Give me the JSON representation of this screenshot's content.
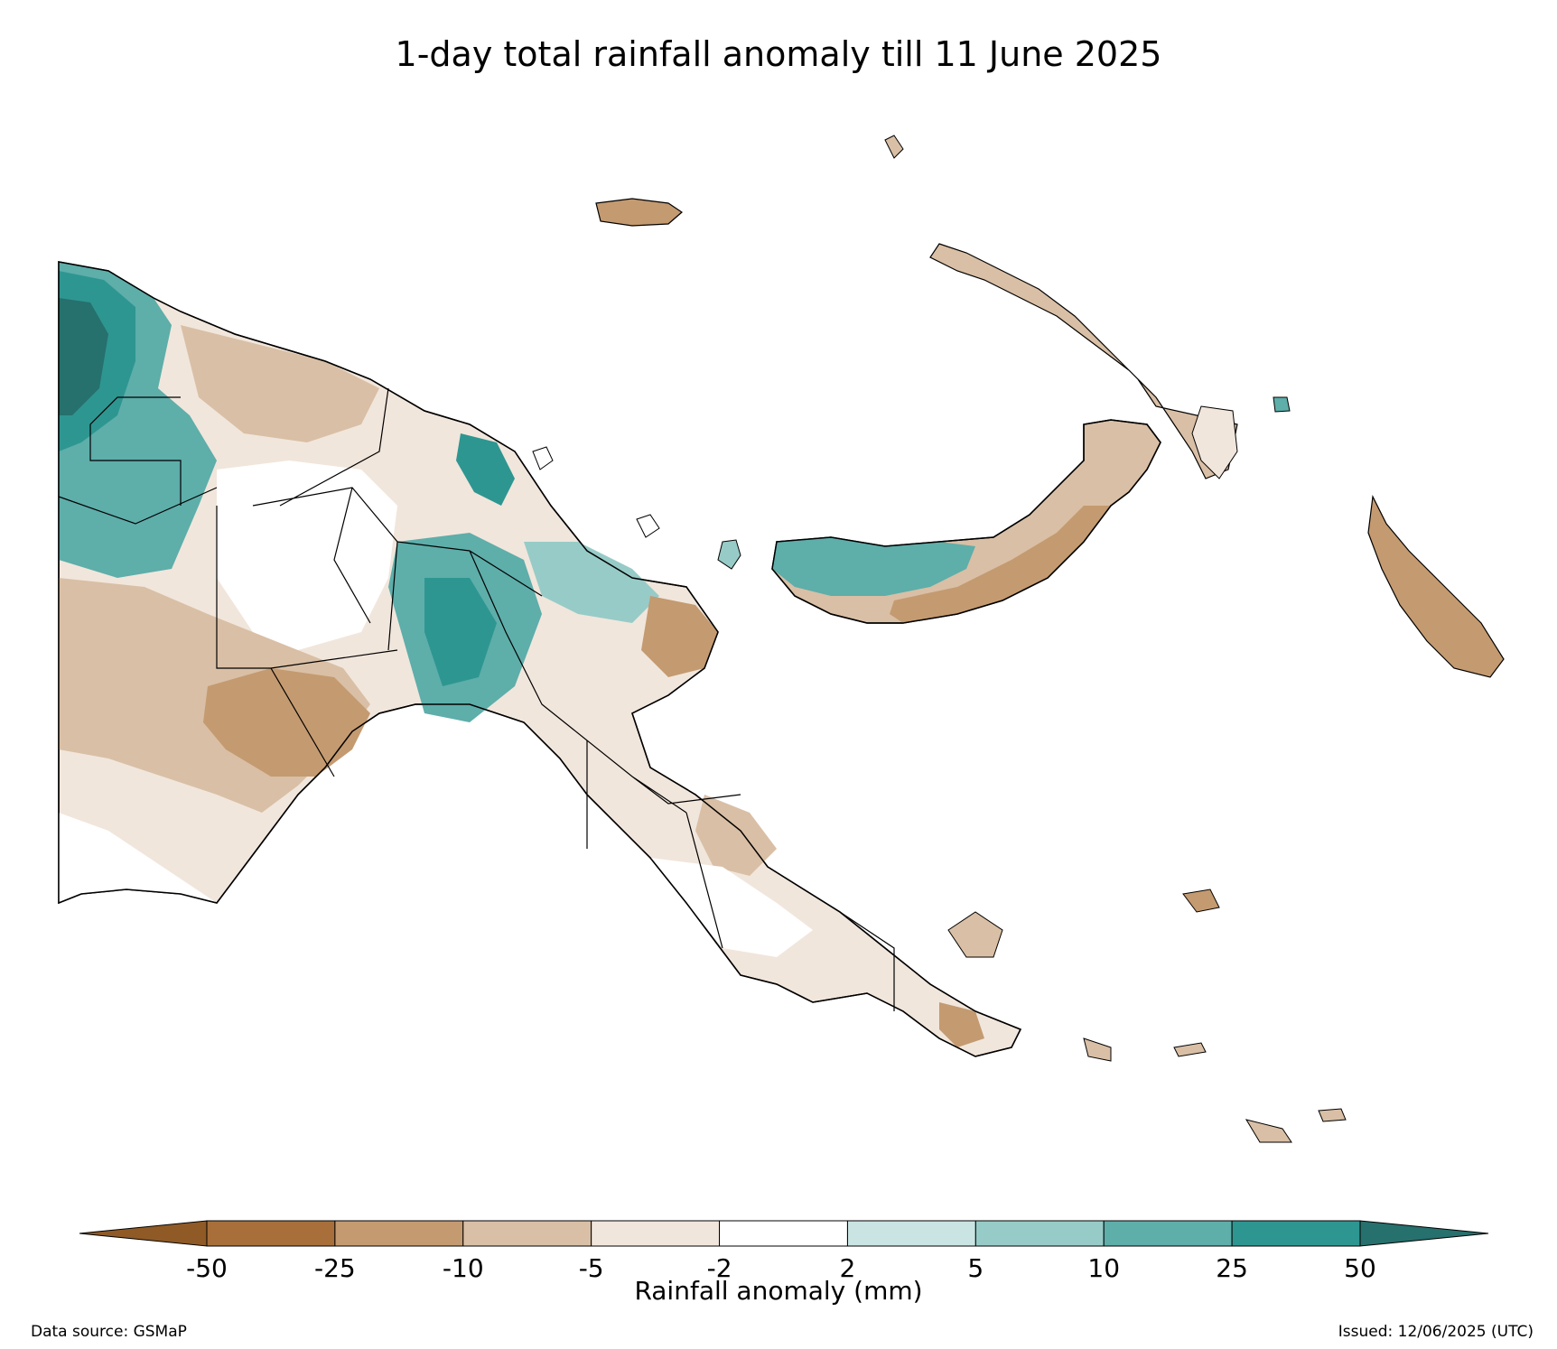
{
  "title": "1-day total rainfall anomaly till 11 June 2025",
  "legend": {
    "label": "Rainfall anomaly (mm)",
    "ticks": [
      "-50",
      "-25",
      "-10",
      "-5",
      "-2",
      "2",
      "5",
      "10",
      "25",
      "50"
    ],
    "colors": {
      "under_min": "#8f5a26",
      "bins": [
        "#a86f3a",
        "#c49a70",
        "#d9bfa5",
        "#f1e6dc",
        "#ffffff",
        "#c9e4e2",
        "#97cbc7",
        "#5eaeaa",
        "#2e9691"
      ],
      "over_max": "#26706d"
    }
  },
  "footer": {
    "source": "Data source: GSMaP",
    "issued": "Issued: 12/06/2025 (UTC)"
  }
}
